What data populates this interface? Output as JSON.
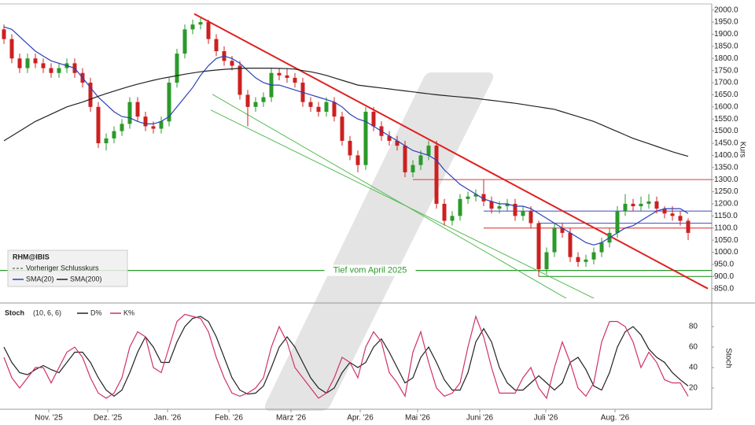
{
  "chart_data": [
    {
      "type": "candlestick",
      "symbol": "RHM@IBIS",
      "prev_close_label": "Vorheriger Schlusskurs",
      "y_label": "Kurs",
      "ylim": [
        810,
        2025
      ],
      "yticks": [
        {
          "value": 850,
          "label": "850.0"
        },
        {
          "value": 900,
          "label": "900.0"
        },
        {
          "value": 950,
          "label": "950.0"
        },
        {
          "value": 1000,
          "label": "1000.0"
        },
        {
          "value": 1050,
          "label": "1050.0"
        },
        {
          "value": 1100,
          "label": "1100.0"
        },
        {
          "value": 1150,
          "label": "1150.0"
        },
        {
          "value": 1200,
          "label": "1200.0"
        },
        {
          "value": 1250,
          "label": "1250.0"
        },
        {
          "value": 1300,
          "label": "1300.0"
        },
        {
          "value": 1350,
          "label": "1350.0"
        },
        {
          "value": 1400,
          "label": "1400.0"
        },
        {
          "value": 1450,
          "label": "1450.0"
        },
        {
          "value": 1500,
          "label": "1500.0"
        },
        {
          "value": 1550,
          "label": "1550.0"
        },
        {
          "value": 1600,
          "label": "1600.0"
        },
        {
          "value": 1650,
          "label": "1650.0"
        },
        {
          "value": 1700,
          "label": "1700.0"
        },
        {
          "value": 1750,
          "label": "1750.0"
        },
        {
          "value": 1800,
          "label": "1800.0"
        },
        {
          "value": 1850,
          "label": "1850.0"
        },
        {
          "value": 1900,
          "label": "1900.0"
        },
        {
          "value": 1950,
          "label": "1950.0"
        },
        {
          "value": 2000,
          "label": "2000.0"
        }
      ],
      "up_color": "#2a9a2a",
      "down_color": "#cc2020",
      "candles": [
        [
          1920,
          1940,
          1860,
          1880
        ],
        [
          1880,
          1900,
          1780,
          1800
        ],
        [
          1800,
          1820,
          1740,
          1760
        ],
        [
          1760,
          1820,
          1740,
          1800
        ],
        [
          1800,
          1820,
          1760,
          1780
        ],
        [
          1780,
          1800,
          1740,
          1760
        ],
        [
          1760,
          1780,
          1720,
          1740
        ],
        [
          1740,
          1780,
          1720,
          1760
        ],
        [
          1760,
          1800,
          1740,
          1780
        ],
        [
          1780,
          1800,
          1720,
          1740
        ],
        [
          1740,
          1760,
          1680,
          1700
        ],
        [
          1700,
          1720,
          1580,
          1600
        ],
        [
          1600,
          1620,
          1430,
          1450
        ],
        [
          1450,
          1490,
          1420,
          1470
        ],
        [
          1470,
          1520,
          1450,
          1500
        ],
        [
          1500,
          1550,
          1480,
          1530
        ],
        [
          1530,
          1640,
          1510,
          1620
        ],
        [
          1620,
          1640,
          1540,
          1560
        ],
        [
          1560,
          1580,
          1500,
          1520
        ],
        [
          1520,
          1540,
          1490,
          1510
        ],
        [
          1510,
          1560,
          1490,
          1540
        ],
        [
          1540,
          1720,
          1520,
          1700
        ],
        [
          1700,
          1840,
          1680,
          1820
        ],
        [
          1820,
          1940,
          1800,
          1920
        ],
        [
          1920,
          1960,
          1900,
          1940
        ],
        [
          1940,
          1970,
          1920,
          1950
        ],
        [
          1950,
          1960,
          1860,
          1880
        ],
        [
          1880,
          1900,
          1810,
          1830
        ],
        [
          1830,
          1850,
          1770,
          1790
        ],
        [
          1790,
          1810,
          1750,
          1770
        ],
        [
          1770,
          1790,
          1630,
          1650
        ],
        [
          1650,
          1670,
          1520,
          1600
        ],
        [
          1600,
          1640,
          1580,
          1620
        ],
        [
          1620,
          1660,
          1600,
          1640
        ],
        [
          1640,
          1760,
          1620,
          1740
        ],
        [
          1740,
          1760,
          1710,
          1730
        ],
        [
          1730,
          1760,
          1700,
          1720
        ],
        [
          1720,
          1740,
          1680,
          1700
        ],
        [
          1700,
          1720,
          1600,
          1620
        ],
        [
          1620,
          1640,
          1580,
          1600
        ],
        [
          1600,
          1620,
          1560,
          1580
        ],
        [
          1580,
          1640,
          1560,
          1620
        ],
        [
          1620,
          1640,
          1540,
          1560
        ],
        [
          1560,
          1580,
          1440,
          1460
        ],
        [
          1460,
          1480,
          1380,
          1400
        ],
        [
          1400,
          1420,
          1330,
          1360
        ],
        [
          1360,
          1600,
          1340,
          1580
        ],
        [
          1580,
          1600,
          1500,
          1520
        ],
        [
          1520,
          1540,
          1460,
          1480
        ],
        [
          1480,
          1500,
          1440,
          1460
        ],
        [
          1460,
          1480,
          1420,
          1440
        ],
        [
          1440,
          1460,
          1310,
          1330
        ],
        [
          1330,
          1380,
          1310,
          1360
        ],
        [
          1360,
          1420,
          1340,
          1400
        ],
        [
          1400,
          1460,
          1380,
          1440
        ],
        [
          1440,
          1460,
          1180,
          1200
        ],
        [
          1200,
          1220,
          1110,
          1130
        ],
        [
          1130,
          1170,
          1110,
          1150
        ],
        [
          1150,
          1240,
          1130,
          1220
        ],
        [
          1220,
          1250,
          1200,
          1230
        ],
        [
          1230,
          1260,
          1210,
          1240
        ],
        [
          1240,
          1300,
          1190,
          1210
        ],
        [
          1210,
          1230,
          1160,
          1180
        ],
        [
          1180,
          1210,
          1160,
          1190
        ],
        [
          1190,
          1220,
          1170,
          1200
        ],
        [
          1200,
          1220,
          1130,
          1150
        ],
        [
          1150,
          1190,
          1130,
          1170
        ],
        [
          1170,
          1190,
          1100,
          1120
        ],
        [
          1120,
          1130,
          900,
          930
        ],
        [
          930,
          1020,
          910,
          1000
        ],
        [
          1000,
          1120,
          980,
          1100
        ],
        [
          1100,
          1120,
          1060,
          1080
        ],
        [
          1080,
          1100,
          960,
          980
        ],
        [
          980,
          1000,
          940,
          960
        ],
        [
          960,
          990,
          940,
          970
        ],
        [
          970,
          1020,
          950,
          1000
        ],
        [
          1000,
          1060,
          980,
          1040
        ],
        [
          1040,
          1100,
          1020,
          1080
        ],
        [
          1080,
          1190,
          1060,
          1170
        ],
        [
          1170,
          1240,
          1150,
          1200
        ],
        [
          1200,
          1220,
          1170,
          1190
        ],
        [
          1190,
          1230,
          1170,
          1200
        ],
        [
          1200,
          1240,
          1180,
          1210
        ],
        [
          1210,
          1230,
          1160,
          1180
        ],
        [
          1180,
          1190,
          1140,
          1160
        ],
        [
          1160,
          1190,
          1130,
          1150
        ],
        [
          1150,
          1170,
          1110,
          1130
        ],
        [
          1130,
          1140,
          1050,
          1080
        ]
      ],
      "series": [
        {
          "name": "SMA(20)",
          "color": "#2b3fb8",
          "values": [
            1930,
            1920,
            1890,
            1860,
            1830,
            1810,
            1790,
            1780,
            1770,
            1760,
            1720,
            1680,
            1640,
            1610,
            1580,
            1560,
            1555,
            1540,
            1530,
            1530,
            1540,
            1560,
            1600,
            1640,
            1680,
            1730,
            1770,
            1800,
            1810,
            1800,
            1780,
            1750,
            1720,
            1700,
            1690,
            1690,
            1680,
            1670,
            1660,
            1650,
            1640,
            1630,
            1620,
            1600,
            1570,
            1550,
            1540,
            1520,
            1500,
            1480,
            1460,
            1440,
            1420,
            1410,
            1400,
            1380,
            1340,
            1310,
            1280,
            1260,
            1240,
            1220,
            1210,
            1200,
            1200,
            1190,
            1190,
            1180,
            1160,
            1140,
            1120,
            1100,
            1080,
            1060,
            1040,
            1030,
            1040,
            1060,
            1080,
            1100,
            1110,
            1130,
            1150,
            1170,
            1180,
            1180,
            1180,
            1160
          ]
        },
        {
          "name": "SMA(200)",
          "color": "#222222",
          "values": [
            1460,
            1480,
            1500,
            1520,
            1540,
            1555,
            1570,
            1585,
            1600,
            1610,
            1620,
            1632,
            1644,
            1655,
            1665,
            1675,
            1685,
            1694,
            1702,
            1710,
            1717,
            1723,
            1729,
            1735,
            1740,
            1745,
            1749,
            1752,
            1755,
            1757,
            1759,
            1760,
            1760,
            1760,
            1760,
            1759,
            1758,
            1756,
            1750,
            1745,
            1738,
            1730,
            1720,
            1710,
            1700,
            1690,
            1686,
            1682,
            1678,
            1674,
            1670,
            1666,
            1662,
            1658,
            1654,
            1650,
            1647,
            1644,
            1641,
            1638,
            1635,
            1631,
            1627,
            1623,
            1619,
            1615,
            1610,
            1605,
            1600,
            1595,
            1590,
            1580,
            1570,
            1560,
            1550,
            1540,
            1526,
            1512,
            1498,
            1484,
            1470,
            1459,
            1448,
            1437,
            1426,
            1415,
            1405,
            1396
          ]
        }
      ],
      "levels": [
        {
          "value": 1300,
          "color": "#e05050",
          "from": 52
        },
        {
          "value": 1100,
          "color": "#e05050",
          "from": 61
        },
        {
          "value": 1170,
          "color": "#5a5ac8",
          "from": 61
        },
        {
          "value": 1120,
          "color": "#5a5ac8",
          "from": 68
        },
        {
          "value": 925,
          "color": "#2a9a2a",
          "from": -0.5,
          "label": "Tief vom April 2025"
        },
        {
          "value": 900,
          "color": "#2a9a2a",
          "from": 68
        }
      ],
      "trendlines": [
        {
          "color": "#e02020",
          "points": [
            [
              24.2,
              1984
            ],
            [
              89.5,
              850
            ]
          ]
        },
        {
          "color": "#55bb55",
          "points": [
            [
              26.5,
              1652
            ],
            [
              72.5,
              791
            ]
          ]
        },
        {
          "color": "#55bb55",
          "points": [
            [
              26.3,
              1587
            ],
            [
              76.2,
              791
            ]
          ]
        }
      ]
    },
    {
      "type": "line",
      "title": "Stoch",
      "params": "(10, 6, 6)",
      "y_label": "Stoch",
      "ylim": [
        0,
        100
      ],
      "yticks": [
        20,
        40,
        60,
        80
      ],
      "xlim": [
        -0.5,
        90
      ],
      "xticks": [
        {
          "value": 5.7,
          "label": "Nov. '25"
        },
        {
          "value": 13.2,
          "label": "Dez. '25"
        },
        {
          "value": 20.8,
          "label": "Jan. '26"
        },
        {
          "value": 28.6,
          "label": "Feb. '26"
        },
        {
          "value": 36.5,
          "label": "März '26"
        },
        {
          "value": 45.3,
          "label": "Apr. '26"
        },
        {
          "value": 52.6,
          "label": "Mai '26"
        },
        {
          "value": 60.5,
          "label": "Juni '26"
        },
        {
          "value": 68.9,
          "label": "Juli '26"
        },
        {
          "value": 77.7,
          "label": "Aug. '26"
        }
      ],
      "series": [
        {
          "name": "D%",
          "color": "#222222",
          "values": [
            60,
            45,
            35,
            33,
            38,
            42,
            38,
            35,
            45,
            55,
            55,
            45,
            30,
            18,
            12,
            18,
            35,
            55,
            70,
            60,
            45,
            45,
            65,
            80,
            88,
            90,
            85,
            70,
            50,
            30,
            18,
            14,
            15,
            22,
            40,
            60,
            70,
            60,
            45,
            30,
            20,
            15,
            20,
            35,
            45,
            40,
            45,
            60,
            68,
            55,
            40,
            25,
            30,
            50,
            60,
            45,
            28,
            18,
            18,
            35,
            65,
            78,
            65,
            40,
            25,
            18,
            18,
            25,
            32,
            25,
            18,
            25,
            45,
            50,
            38,
            22,
            18,
            35,
            60,
            75,
            80,
            72,
            58,
            50,
            45,
            35,
            28,
            22
          ]
        },
        {
          "name": "K%",
          "color": "#d0306a",
          "values": [
            50,
            30,
            20,
            30,
            40,
            40,
            25,
            40,
            55,
            60,
            50,
            30,
            15,
            10,
            15,
            30,
            60,
            75,
            70,
            40,
            35,
            60,
            85,
            92,
            90,
            88,
            75,
            50,
            30,
            15,
            12,
            15,
            20,
            30,
            60,
            80,
            65,
            40,
            30,
            20,
            10,
            15,
            30,
            50,
            45,
            30,
            60,
            75,
            65,
            35,
            25,
            12,
            55,
            75,
            45,
            20,
            12,
            15,
            25,
            60,
            90,
            70,
            40,
            15,
            15,
            15,
            30,
            40,
            20,
            10,
            40,
            65,
            45,
            20,
            12,
            25,
            65,
            85,
            85,
            80,
            65,
            40,
            55,
            45,
            28,
            25,
            25,
            12
          ]
        }
      ]
    }
  ]
}
